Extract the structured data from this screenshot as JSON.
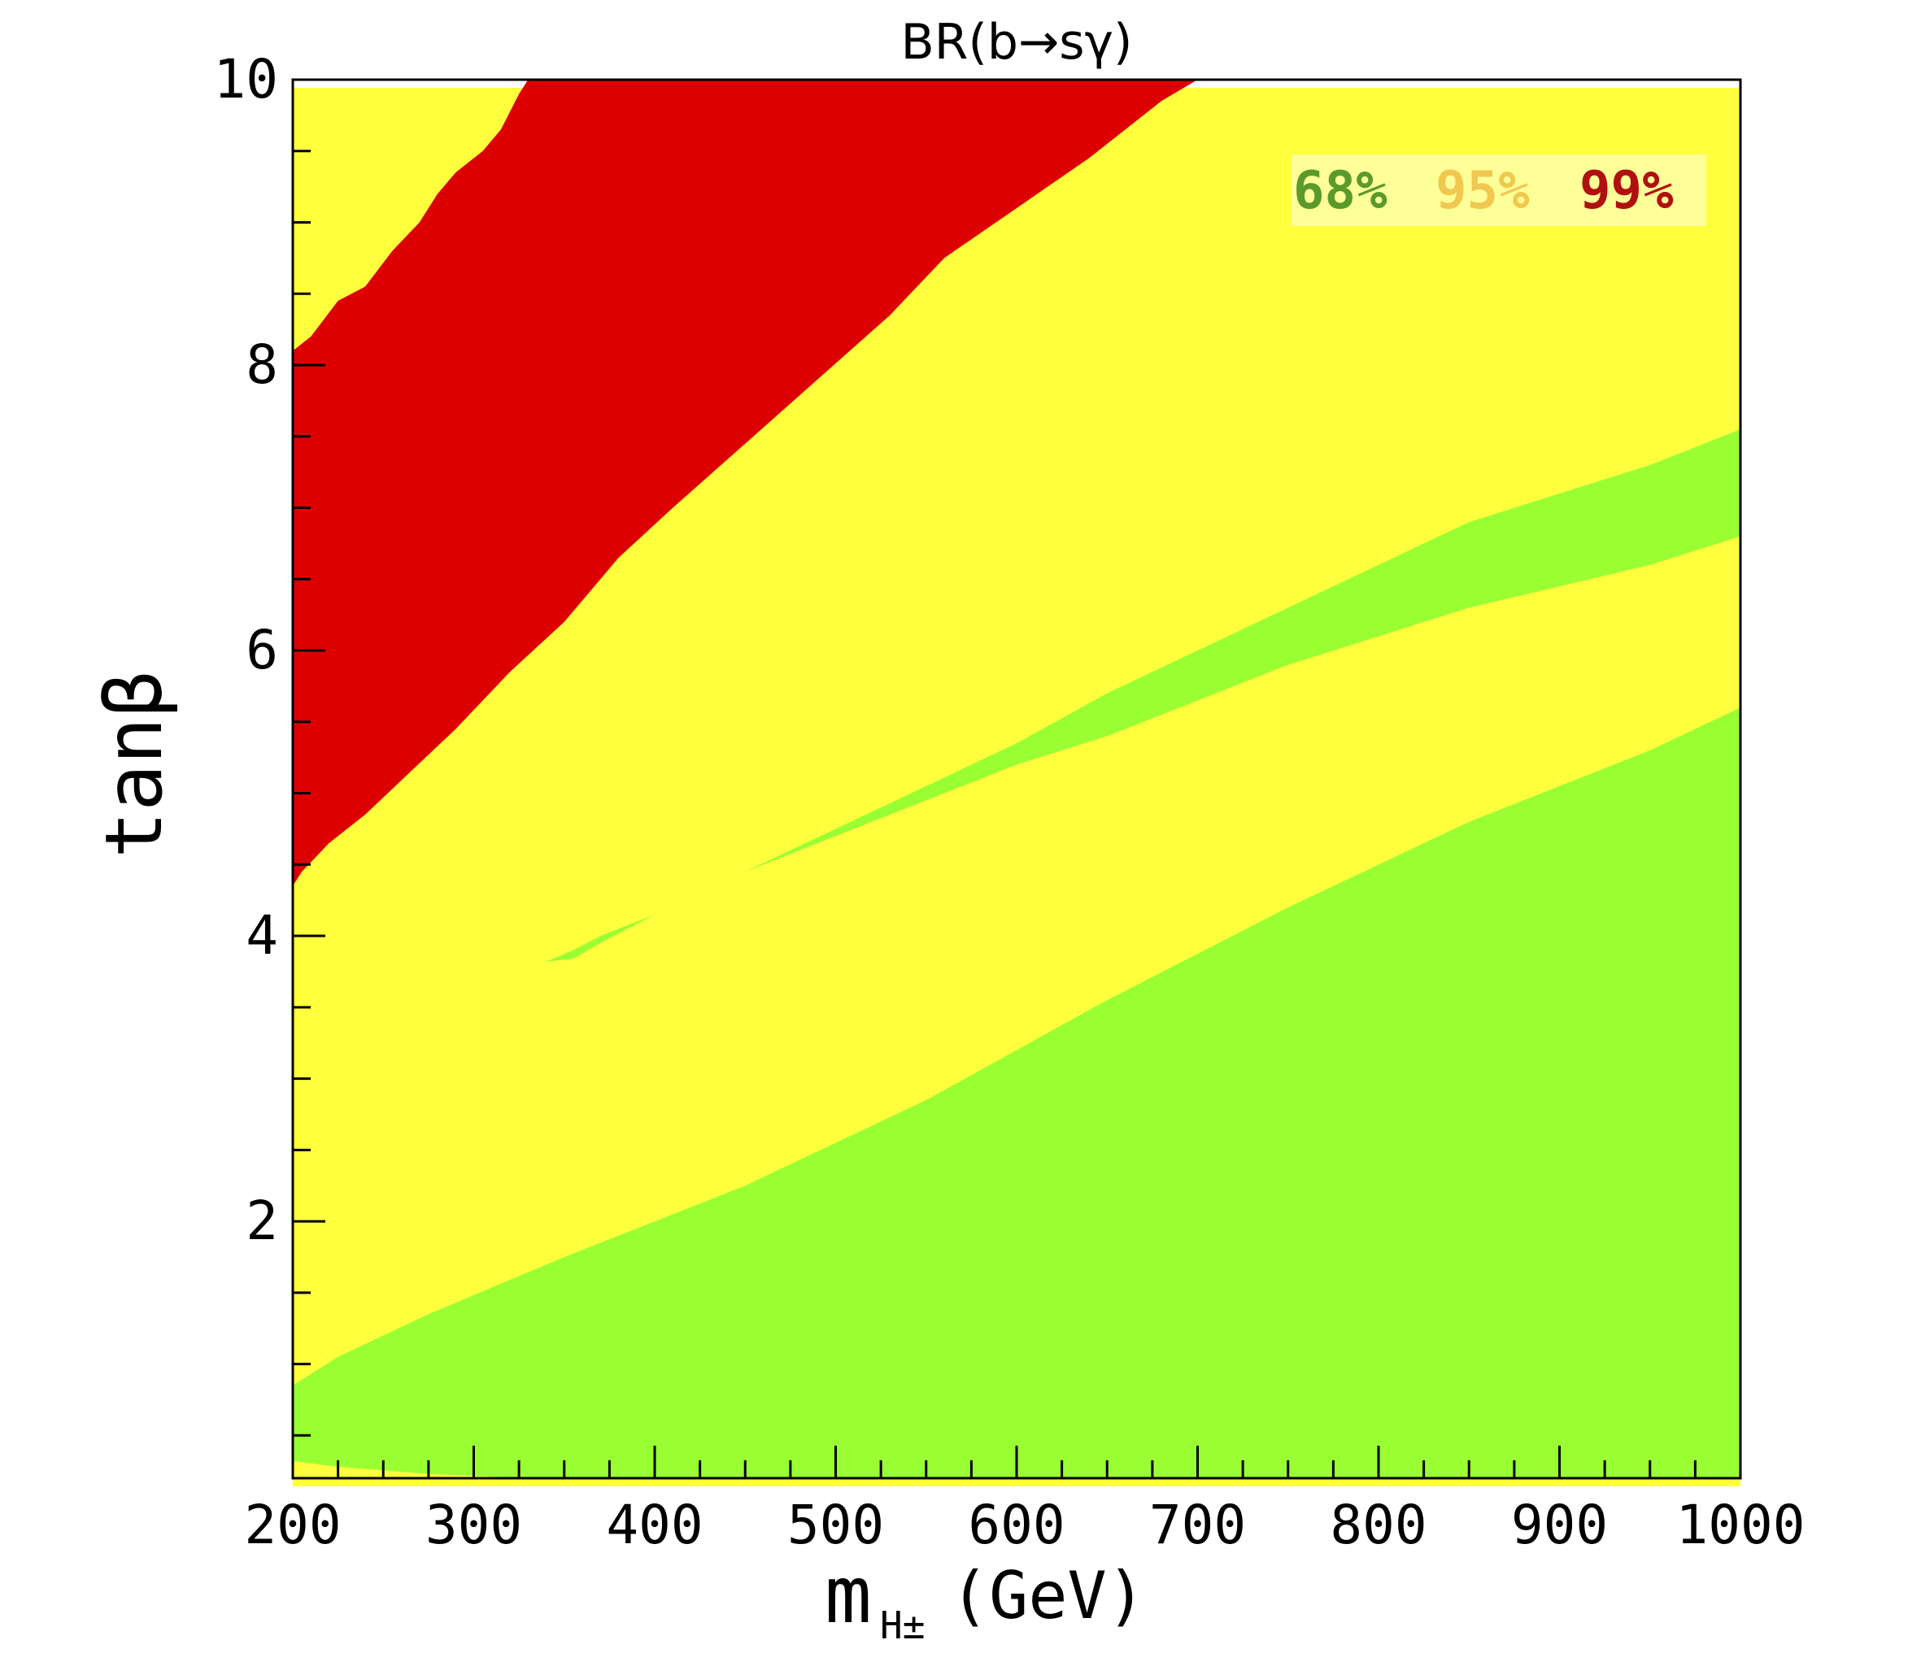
{
  "chart_data": {
    "type": "area",
    "title": "BR(b→sγ)",
    "xlabel": "m",
    "xlabel_subscript": "H±",
    "xlabel_unit": "(GeV)",
    "ylabel": "tanβ",
    "xlim": [
      200,
      1000
    ],
    "ylim": [
      0.2,
      10
    ],
    "x_ticks": [
      200,
      300,
      400,
      500,
      600,
      700,
      800,
      900,
      1000
    ],
    "x_tick_labels": [
      "200",
      "300",
      "400",
      "500",
      "600",
      "700",
      "800",
      "900",
      "1000"
    ],
    "y_ticks": [
      2,
      4,
      6,
      8,
      10
    ],
    "y_tick_labels": [
      "2",
      "4",
      "6",
      "8",
      "10"
    ],
    "grid": false,
    "legend_position": "top-right",
    "legend": [
      {
        "label": "68%",
        "color": "#5a9a2a"
      },
      {
        "label": "95%",
        "color": "#f0c850"
      },
      {
        "label": "99%",
        "color": "#b01010"
      }
    ],
    "regions": [
      {
        "name": "99% region",
        "color": "#dd0000",
        "polygon": [
          [
            200,
            8.1
          ],
          [
            210,
            8.2
          ],
          [
            225,
            8.45
          ],
          [
            240,
            8.55
          ],
          [
            255,
            8.8
          ],
          [
            270,
            9.0
          ],
          [
            280,
            9.2
          ],
          [
            290,
            9.35
          ],
          [
            305,
            9.5
          ],
          [
            315,
            9.65
          ],
          [
            325,
            9.9
          ],
          [
            330,
            10.0
          ],
          [
            700,
            10.0
          ],
          [
            680,
            9.85
          ],
          [
            640,
            9.45
          ],
          [
            600,
            9.1
          ],
          [
            560,
            8.75
          ],
          [
            530,
            8.35
          ],
          [
            490,
            7.9
          ],
          [
            450,
            7.45
          ],
          [
            410,
            7.0
          ],
          [
            380,
            6.65
          ],
          [
            350,
            6.2
          ],
          [
            320,
            5.85
          ],
          [
            290,
            5.45
          ],
          [
            265,
            5.15
          ],
          [
            240,
            4.85
          ],
          [
            220,
            4.65
          ],
          [
            205,
            4.45
          ],
          [
            200,
            4.35
          ]
        ]
      },
      {
        "name": "68% region (lower)",
        "color": "#99ff33",
        "polygon": [
          [
            200,
            0.85
          ],
          [
            225,
            1.05
          ],
          [
            275,
            1.35
          ],
          [
            350,
            1.75
          ],
          [
            450,
            2.25
          ],
          [
            550,
            2.85
          ],
          [
            650,
            3.55
          ],
          [
            750,
            4.2
          ],
          [
            850,
            4.8
          ],
          [
            950,
            5.3
          ],
          [
            1000,
            5.6
          ],
          [
            1000,
            0.2
          ],
          [
            330,
            0.2
          ],
          [
            275,
            0.23
          ],
          [
            225,
            0.28
          ],
          [
            200,
            0.32
          ]
        ]
      },
      {
        "name": "68% region (band)",
        "color": "#99ff33",
        "polygon": [
          [
            340,
            3.82
          ],
          [
            355,
            3.9
          ],
          [
            370,
            4.0
          ],
          [
            400,
            4.15
          ],
          [
            450,
            4.45
          ],
          [
            500,
            4.75
          ],
          [
            550,
            5.05
          ],
          [
            600,
            5.35
          ],
          [
            650,
            5.7
          ],
          [
            700,
            6.0
          ],
          [
            750,
            6.3
          ],
          [
            800,
            6.6
          ],
          [
            850,
            6.9
          ],
          [
            900,
            7.1
          ],
          [
            950,
            7.3
          ],
          [
            1000,
            7.55
          ],
          [
            1000,
            6.8
          ],
          [
            950,
            6.6
          ],
          [
            900,
            6.45
          ],
          [
            850,
            6.3
          ],
          [
            800,
            6.1
          ],
          [
            750,
            5.9
          ],
          [
            700,
            5.65
          ],
          [
            650,
            5.4
          ],
          [
            600,
            5.2
          ],
          [
            550,
            4.95
          ],
          [
            500,
            4.7
          ],
          [
            450,
            4.45
          ],
          [
            400,
            4.15
          ],
          [
            370,
            3.95
          ],
          [
            355,
            3.84
          ]
        ]
      }
    ]
  }
}
